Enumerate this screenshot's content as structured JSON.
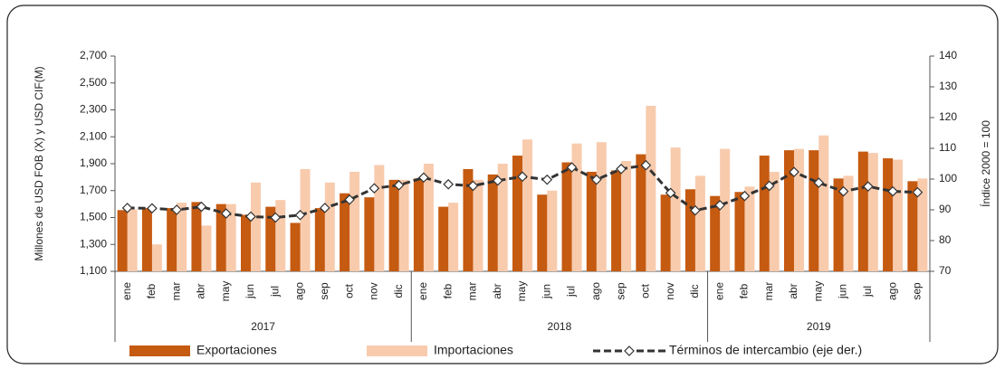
{
  "chart_data": {
    "type": "bar_line",
    "groups": [
      {
        "label": "2017",
        "categories": [
          "ene",
          "feb",
          "mar",
          "abr",
          "may",
          "jun",
          "jul",
          "ago",
          "sep",
          "oct",
          "nov",
          "dic"
        ]
      },
      {
        "label": "2018",
        "categories": [
          "ene",
          "feb",
          "mar",
          "abr",
          "may",
          "jun",
          "jul",
          "ago",
          "sep",
          "oct",
          "nov",
          "dic"
        ]
      },
      {
        "label": "2019",
        "categories": [
          "ene",
          "feb",
          "mar",
          "abr",
          "may",
          "jun",
          "jul",
          "ago",
          "sep"
        ]
      }
    ],
    "series": [
      {
        "name": "Exportaciones",
        "color": "#c55a11",
        "kind": "bar",
        "axis": "y",
        "values": [
          1555,
          1570,
          1570,
          1615,
          1600,
          1520,
          1580,
          1460,
          1570,
          1680,
          1650,
          1780,
          1790,
          1580,
          1860,
          1820,
          1960,
          1670,
          1910,
          1840,
          1850,
          1970,
          1670,
          1710,
          1660,
          1690,
          1960,
          2000,
          2000,
          1790,
          1990,
          1940,
          1770
        ]
      },
      {
        "name": "Importaciones",
        "color": "#f8cbad",
        "kind": "bar",
        "axis": "y",
        "values": [
          1560,
          1300,
          1610,
          1440,
          1600,
          1760,
          1630,
          1860,
          1760,
          1840,
          1890,
          1780,
          1900,
          1610,
          1780,
          1900,
          2080,
          1700,
          2050,
          2060,
          1920,
          2330,
          2020,
          1810,
          2010,
          1730,
          1840,
          2010,
          2110,
          1810,
          1980,
          1930,
          1790
        ]
      },
      {
        "name": "Términos de intercambio (eje der.)",
        "color": "#333333",
        "kind": "line",
        "axis": "y2",
        "values": [
          90.6,
          90.5,
          90,
          91,
          88.8,
          87.8,
          87.5,
          88.3,
          90.6,
          93.3,
          97,
          98,
          100.5,
          98.3,
          97.8,
          99.5,
          100.8,
          99.8,
          103.8,
          99.8,
          103.3,
          104.5,
          95.5,
          89.8,
          91.5,
          94.5,
          97.8,
          102.3,
          98.8,
          96,
          97.6,
          96,
          95.7
        ]
      }
    ],
    "ylabel": "Millones de USD FOB (X) y USD CIF(M)",
    "y2label": "Índice 2000 = 100",
    "ylim": [
      1100,
      2700
    ],
    "yticks": [
      {
        "value": 1100,
        "label": "1,100"
      },
      {
        "value": 1300,
        "label": "1,300"
      },
      {
        "value": 1500,
        "label": "1,500"
      },
      {
        "value": 1700,
        "label": "1,700"
      },
      {
        "value": 1900,
        "label": "1,900"
      },
      {
        "value": 2100,
        "label": "2,100"
      },
      {
        "value": 2300,
        "label": "2,300"
      },
      {
        "value": 2500,
        "label": "2,500"
      },
      {
        "value": 2700,
        "label": "2,700"
      }
    ],
    "y2lim": [
      70,
      140
    ],
    "y2ticks": [
      70,
      80,
      90,
      100,
      110,
      120,
      130,
      140
    ],
    "grid": false,
    "legend": "bottom"
  }
}
